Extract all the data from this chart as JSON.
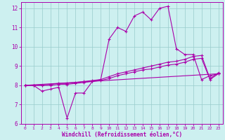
{
  "xlabel": "Windchill (Refroidissement éolien,°C)",
  "bg_color": "#cdf0f0",
  "line_color": "#aa00aa",
  "grid_color": "#99cccc",
  "xlim": [
    -0.5,
    23.5
  ],
  "ylim": [
    6,
    12.3
  ],
  "yticks": [
    6,
    7,
    8,
    9,
    10,
    11,
    12
  ],
  "xticks": [
    0,
    1,
    2,
    3,
    4,
    5,
    6,
    7,
    8,
    9,
    10,
    11,
    12,
    13,
    14,
    15,
    16,
    17,
    18,
    19,
    20,
    21,
    22,
    23
  ],
  "series1_x": [
    0,
    1,
    2,
    3,
    4,
    5,
    6,
    7,
    8,
    9,
    10,
    11,
    12,
    13,
    14,
    15,
    16,
    17,
    18,
    19,
    20,
    21,
    22,
    23
  ],
  "series1_y": [
    8.0,
    8.0,
    7.7,
    7.8,
    7.9,
    6.3,
    7.6,
    7.6,
    8.2,
    8.3,
    10.4,
    11.0,
    10.8,
    11.6,
    11.8,
    11.4,
    12.0,
    12.1,
    9.9,
    9.6,
    9.6,
    8.3,
    8.5,
    8.6
  ],
  "series2_x": [
    0,
    1,
    2,
    3,
    4,
    5,
    6,
    7,
    8,
    9,
    10,
    11,
    12,
    13,
    14,
    15,
    16,
    17,
    18,
    19,
    20,
    21,
    22,
    23
  ],
  "series2_y": [
    8.0,
    8.0,
    8.0,
    8.05,
    8.1,
    8.1,
    8.15,
    8.2,
    8.25,
    8.3,
    8.45,
    8.6,
    8.7,
    8.8,
    8.9,
    9.0,
    9.1,
    9.2,
    9.25,
    9.35,
    9.5,
    9.55,
    8.35,
    8.65
  ],
  "series3_x": [
    0,
    1,
    2,
    3,
    4,
    5,
    6,
    7,
    8,
    9,
    10,
    11,
    12,
    13,
    14,
    15,
    16,
    17,
    18,
    19,
    20,
    21,
    22,
    23
  ],
  "series3_y": [
    8.0,
    8.0,
    8.0,
    8.0,
    8.05,
    8.05,
    8.1,
    8.15,
    8.2,
    8.25,
    8.35,
    8.5,
    8.6,
    8.7,
    8.8,
    8.85,
    8.95,
    9.05,
    9.1,
    9.2,
    9.35,
    9.4,
    8.3,
    8.6
  ],
  "series4_x": [
    0,
    23
  ],
  "series4_y": [
    8.0,
    8.6
  ]
}
